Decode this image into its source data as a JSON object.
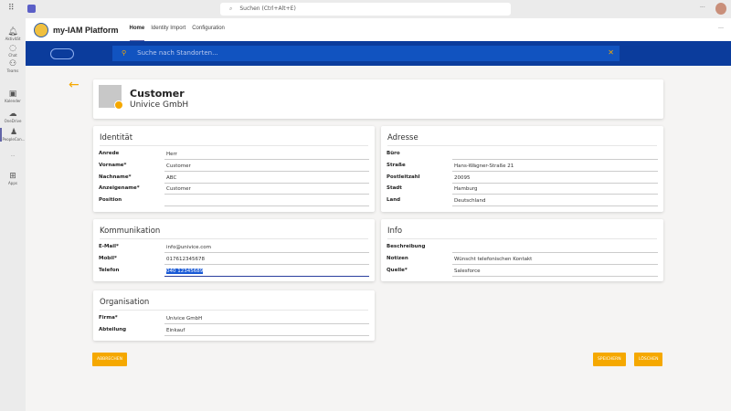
{
  "teams": {
    "search_placeholder": "Suchen (Ctrl+Alt+E)",
    "more": "···",
    "rail": [
      {
        "icon": "bell-icon",
        "label": "Aktivität"
      },
      {
        "icon": "chat-icon",
        "label": "Chat"
      },
      {
        "icon": "teams-icon",
        "label": "Teams"
      },
      {
        "icon": "calendar-icon",
        "label": "Kalender"
      },
      {
        "icon": "cloud-icon",
        "label": "OneDrive"
      },
      {
        "icon": "people-icon",
        "label": "PeopleCon..."
      },
      {
        "icon": "more-icon",
        "label": "···"
      },
      {
        "icon": "plus-icon",
        "label": "Apps"
      }
    ]
  },
  "app": {
    "title": "my-IAM Platform",
    "tabs": [
      "Home",
      "Identity Import",
      "Configuration"
    ],
    "more": "···"
  },
  "banner": {
    "search_placeholder": "Suche nach Standorten..."
  },
  "header": {
    "title": "Customer",
    "subtitle": "Univice GmbH"
  },
  "sections": {
    "identitaet": {
      "title": "Identität",
      "fields": [
        [
          "Anrede",
          "Herr"
        ],
        [
          "Vorname*",
          "Customer"
        ],
        [
          "Nachname*",
          "ABC"
        ],
        [
          "Anzeigename*",
          "Customer"
        ],
        [
          "Position",
          ""
        ]
      ]
    },
    "adresse": {
      "title": "Adresse",
      "fields": [
        [
          "Büro",
          ""
        ],
        [
          "Straße",
          "Hans-Wägner-Straße 21"
        ],
        [
          "Postleitzahl",
          "20095"
        ],
        [
          "Stadt",
          "Hamburg"
        ],
        [
          "Land",
          "Deutschland"
        ]
      ]
    },
    "kommunikation": {
      "title": "Kommunikation",
      "fields": [
        [
          "E-Mail*",
          "info@univice.com"
        ],
        [
          "Mobil*",
          "017612345678"
        ],
        [
          "Telefon",
          "040 12345689"
        ]
      ]
    },
    "info": {
      "title": "Info",
      "fields": [
        [
          "Beschreibung",
          ""
        ],
        [
          "Notizen",
          "Wünscht telefonischen Kontakt"
        ],
        [
          "Quelle*",
          "Salesforce"
        ]
      ]
    },
    "organisation": {
      "title": "Organisation",
      "fields": [
        [
          "Firma*",
          "Univice GmbH"
        ],
        [
          "Abteilung",
          "Einkauf"
        ]
      ]
    }
  },
  "buttons": {
    "cancel": "ABBRECHEN",
    "save": "SPEICHERN",
    "delete": "LÖSCHEN"
  },
  "colors": {
    "accent": "#f5a800",
    "banner": "#0b3c9c",
    "teams": "#6264a7"
  }
}
